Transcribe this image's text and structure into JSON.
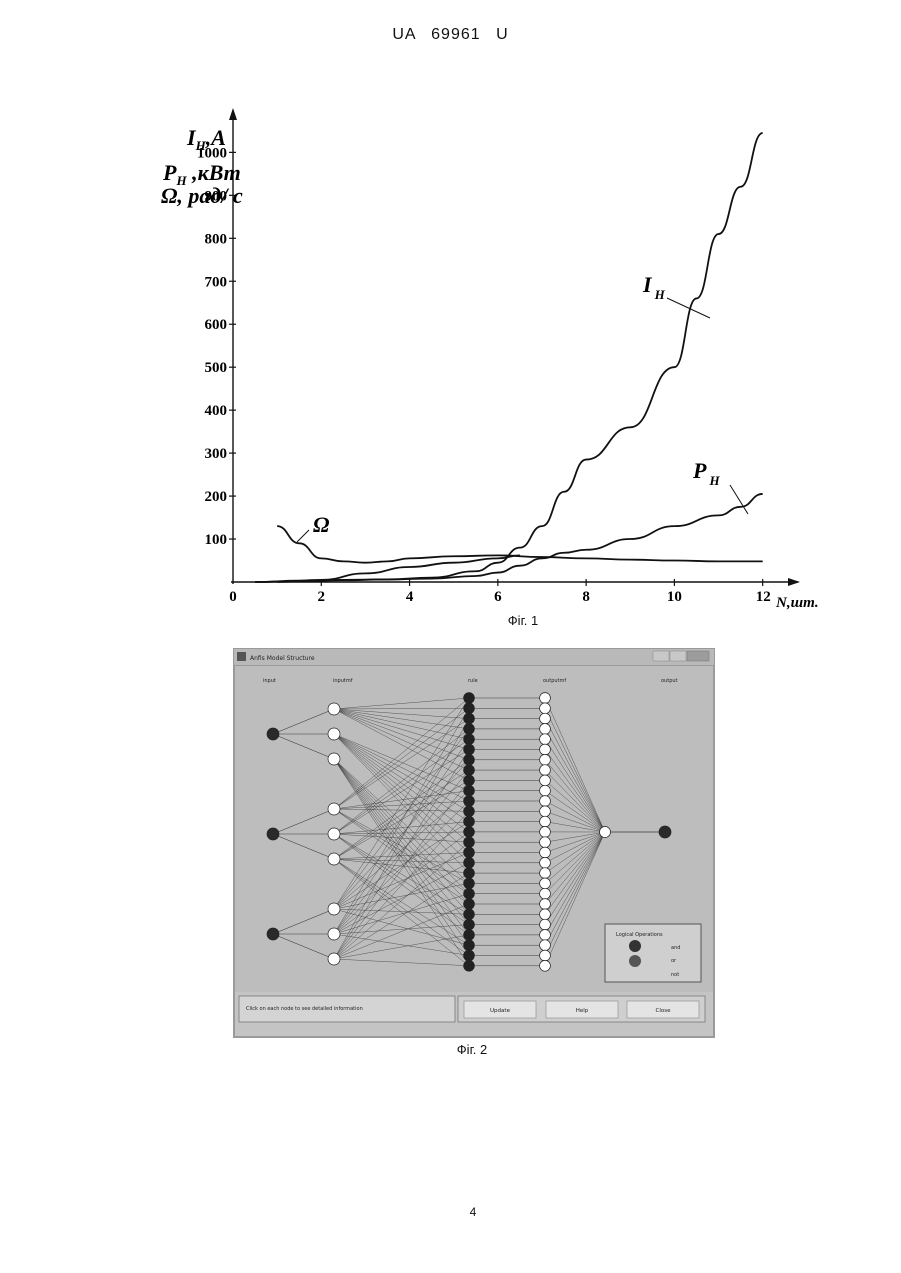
{
  "header": {
    "doc": "UA",
    "number": "69961",
    "kind": "U"
  },
  "figure1": {
    "caption": "Фіг. 1",
    "chart_data": {
      "type": "line",
      "xlabel": "N,шт.",
      "ylabel_lines": [
        "I",
        "H",
        ",A",
        "P",
        "H",
        " ,кВт",
        "Ω, рад/ с"
      ],
      "x_ticks": [
        "0",
        "2",
        "4",
        "6",
        "8",
        "10",
        "12"
      ],
      "y_ticks": [
        "100",
        "200",
        "300",
        "400",
        "500",
        "600",
        "700",
        "800",
        "900",
        "1000"
      ],
      "xlim": [
        0,
        12.8
      ],
      "ylim": [
        0,
        1080
      ],
      "series": [
        {
          "name": "I",
          "sub": "H",
          "x": [
            0.5,
            1.5,
            2.5,
            3.5,
            4.5,
            5.5,
            6.0,
            6.5,
            7.0,
            7.5,
            8.0,
            9.0,
            10.0,
            10.5,
            11.0,
            11.5,
            12.0
          ],
          "values": [
            0,
            2,
            4,
            6,
            10,
            25,
            45,
            80,
            130,
            210,
            285,
            360,
            500,
            660,
            810,
            920,
            1045
          ]
        },
        {
          "name": "P",
          "sub": "H",
          "x": [
            0.5,
            1.5,
            2.5,
            3.5,
            4.5,
            5.5,
            6.0,
            6.5,
            7.0,
            7.5,
            8.0,
            9.0,
            10.0,
            11.0,
            11.5,
            12.0
          ],
          "values": [
            0,
            3,
            5,
            6,
            8,
            14,
            22,
            38,
            55,
            68,
            75,
            100,
            130,
            155,
            175,
            205
          ]
        },
        {
          "name": "Ω",
          "sub": "",
          "x": [
            1.0,
            1.5,
            2.0,
            2.5,
            3.0,
            3.5,
            4.0,
            5.0,
            6.0,
            7.0,
            8.0,
            9.0,
            10.0,
            11.0,
            12.0
          ],
          "values": [
            130,
            90,
            55,
            48,
            45,
            48,
            55,
            60,
            62,
            58,
            55,
            52,
            50,
            48,
            48
          ]
        },
        {
          "name": "",
          "sub": "",
          "x": [
            1.0,
            2.0,
            3.0,
            4.0,
            5.0,
            6.0,
            6.5
          ],
          "values": [
            0,
            5,
            20,
            35,
            45,
            55,
            62
          ]
        }
      ]
    }
  },
  "figure2": {
    "caption": "Фіг. 2",
    "window_title": "Anfis Model Structure",
    "layer_labels": [
      "input",
      "inputmf",
      "rule",
      "outputmf",
      "output"
    ],
    "legend_title": "Logical Operations",
    "legend_items": [
      "and",
      "or",
      "not"
    ],
    "status_text": "Click on each node to see detailed information",
    "buttons": [
      "Update",
      "Help",
      "Close"
    ],
    "colors": {
      "input": "#2a2a2a",
      "rule": "#222222",
      "mf": "#ffffff",
      "panel": "#cfcfcf",
      "edge": "#3a3a3a"
    }
  },
  "page_number": "4"
}
